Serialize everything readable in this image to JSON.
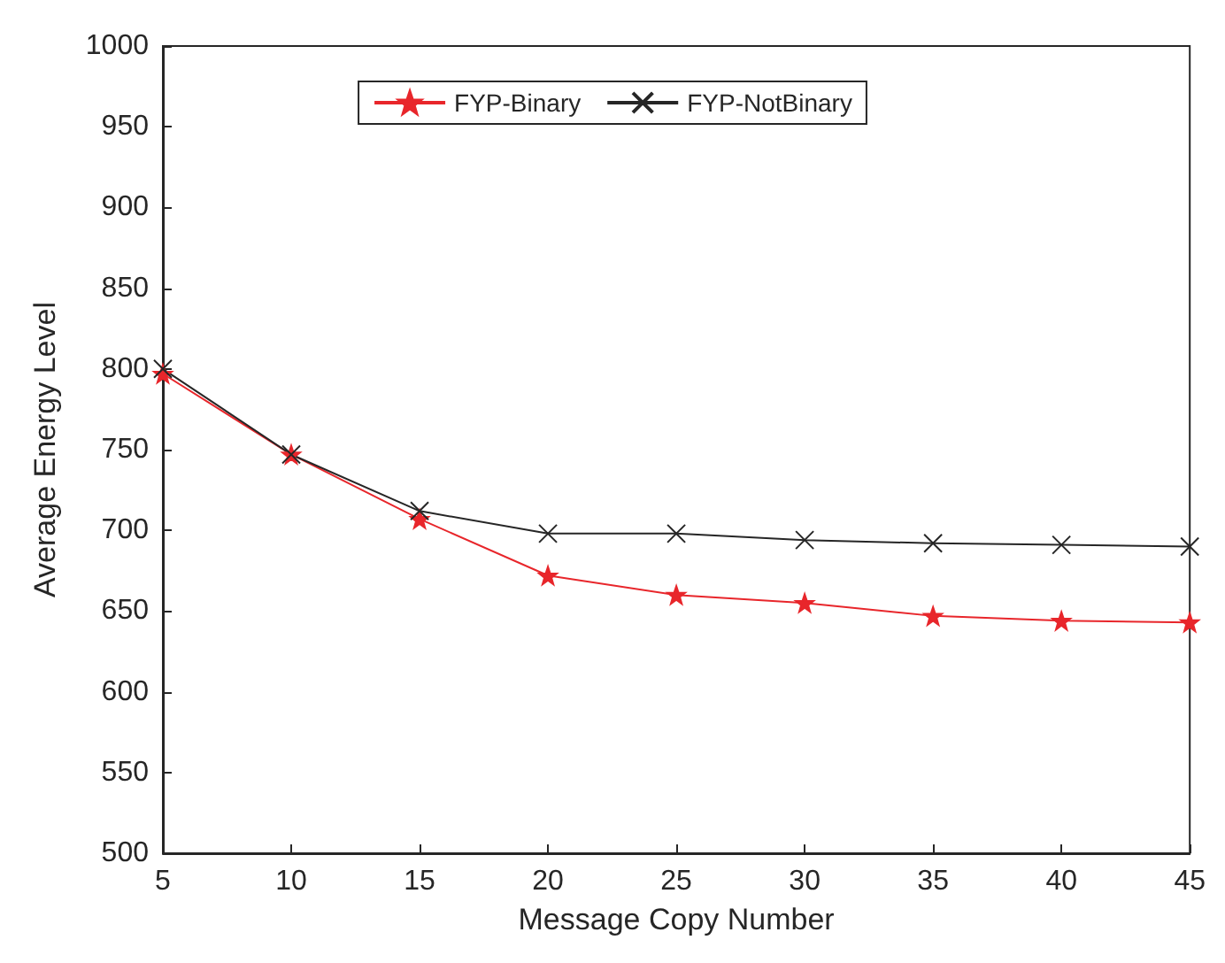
{
  "chart_data": {
    "type": "line",
    "xlabel": "Message Copy Number",
    "ylabel": "Average Energy Level",
    "x": [
      5,
      10,
      15,
      20,
      25,
      30,
      35,
      40,
      45
    ],
    "series": [
      {
        "name": "FYP-Binary",
        "color": "#e8262b",
        "marker": "star",
        "values": [
          797,
          747,
          707,
          672,
          660,
          655,
          647,
          644,
          643
        ]
      },
      {
        "name": "FYP-NotBinary",
        "color": "#262626",
        "marker": "cross",
        "values": [
          800,
          747,
          712,
          698,
          698,
          694,
          692,
          691,
          690
        ]
      }
    ],
    "xlim": [
      5,
      45
    ],
    "xticks": [
      5,
      10,
      15,
      20,
      25,
      30,
      35,
      40,
      45
    ],
    "ylim": [
      500,
      1000
    ],
    "yticks": [
      500,
      550,
      600,
      650,
      700,
      750,
      800,
      850,
      900,
      950,
      1000
    ],
    "grid": false,
    "legend": "top",
    "line_style": "solid"
  }
}
